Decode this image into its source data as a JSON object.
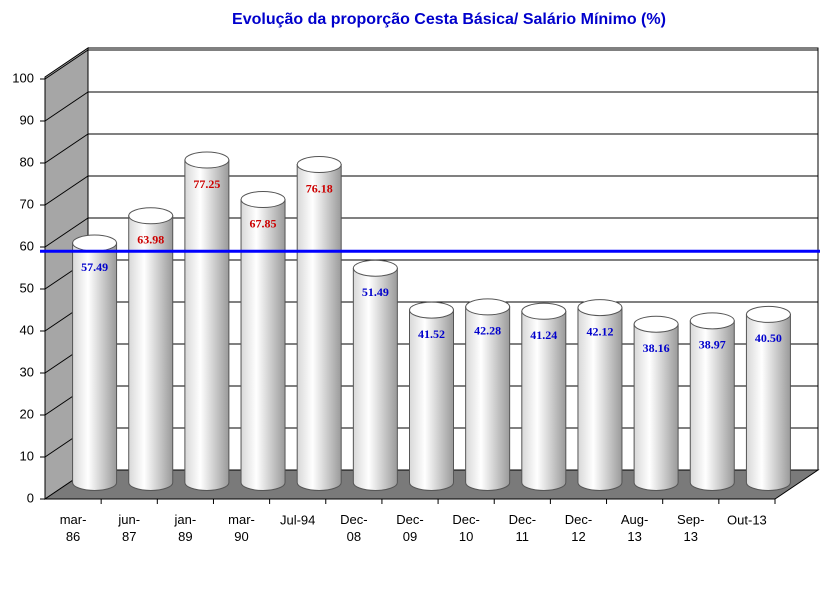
{
  "chart_data": {
    "type": "bar3d",
    "title": "Evolução da proporção Cesta Básica/ Salário Mínimo (%)",
    "categories": [
      "mar-\n86",
      "jun-\n87",
      "jan-\n89",
      "mar-\n90",
      "Jul-94",
      "Dec-\n08",
      "Dec-\n09",
      "Dec-\n10",
      "Dec-\n11",
      "Dec-\n12",
      "Aug-\n13",
      "Sep-\n13",
      "Out-13"
    ],
    "values": [
      57.49,
      63.98,
      77.25,
      67.85,
      76.18,
      51.49,
      41.52,
      42.28,
      41.24,
      42.12,
      38.16,
      38.97,
      40.5
    ],
    "value_labels": [
      "57.49",
      "63.98",
      "77.25",
      "67.85",
      "76.18",
      "51.49",
      "41.52",
      "42.28",
      "41.24",
      "42.12",
      "38.16",
      "38.97",
      "40.50"
    ],
    "value_label_colors": [
      "#0000cc",
      "#cc0000",
      "#cc0000",
      "#cc0000",
      "#cc0000",
      "#0000cc",
      "#0000cc",
      "#0000cc",
      "#0000cc",
      "#0000cc",
      "#0000cc",
      "#0000cc",
      "#0000cc"
    ],
    "color": "#ffffff",
    "ylim": [
      0,
      100
    ],
    "yticks": [
      0,
      10,
      20,
      30,
      40,
      50,
      60,
      70,
      80,
      90,
      100
    ],
    "grid": true,
    "reference_line": {
      "value": 59,
      "color": "#0000ff"
    }
  }
}
